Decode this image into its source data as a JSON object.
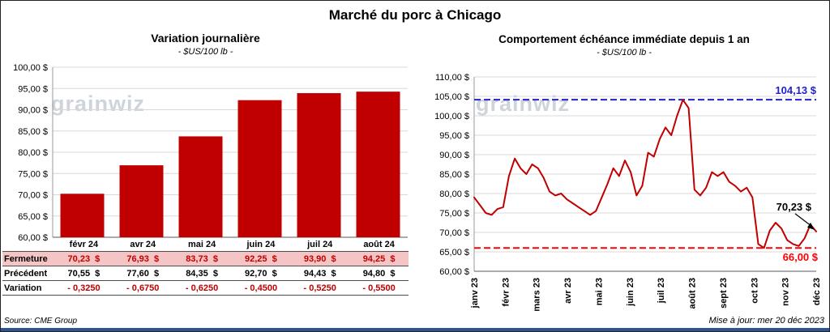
{
  "title": "Marché du porc à Chicago",
  "watermark": "grainwiz",
  "footer": {
    "source": "Source: CME Group",
    "updated": "Mise à jour: mer 20 déc 2023"
  },
  "colors": {
    "bar_red": "#C00000",
    "line_red": "#C00000",
    "reference_blue": "#2121CC",
    "reference_red": "#FF0000",
    "highlight_pink": "#F5C4C4",
    "footer_navy": "#2F5496",
    "watermark_gray": "#C3CAD2",
    "gridline_gray": "#D8D8D8"
  },
  "chart_data": [
    {
      "type": "bar",
      "title": "Variation journalière",
      "subtitle": "- $US/100 lb -",
      "categories": [
        "févr 24",
        "avr 24",
        "mai 24",
        "juin 24",
        "juil 24",
        "août 24"
      ],
      "values": [
        70.23,
        76.93,
        83.73,
        92.25,
        93.9,
        94.25
      ],
      "ylim": [
        60,
        100
      ],
      "ytick_step": 5,
      "bar_color": "#C00000",
      "grid": true,
      "table": {
        "rows": [
          {
            "label": "Fermeture",
            "style": "highlight",
            "values": [
              "70,23  $",
              "76,93  $",
              "83,73  $",
              "92,25  $",
              "93,90  $",
              "94,25  $"
            ]
          },
          {
            "label": "Précédent",
            "style": "normal",
            "values": [
              "70,55  $",
              "77,60  $",
              "84,35  $",
              "92,70  $",
              "94,43  $",
              "94,80  $"
            ]
          },
          {
            "label": "Variation",
            "style": "negative",
            "values": [
              "- 0,3250",
              "- 0,6750",
              "- 0,6250",
              "- 0,4500",
              "- 0,5250",
              "- 0,5500"
            ]
          }
        ]
      }
    },
    {
      "type": "line",
      "title": "Comportement échéance immédiate depuis 1 an",
      "subtitle": "- $US/100 lb -",
      "x_labels": [
        "janv 23",
        "févr 23",
        "mars 23",
        "avr 23",
        "mai 23",
        "juin 23",
        "juil 23",
        "août 23",
        "sept 23",
        "oct 23",
        "nov 23",
        "déc 23"
      ],
      "values": [
        79.0,
        77.0,
        75.0,
        74.5,
        76.0,
        76.5,
        84.5,
        89.0,
        86.5,
        85.0,
        87.5,
        86.5,
        84.0,
        80.5,
        79.5,
        80.0,
        78.5,
        77.5,
        76.5,
        75.5,
        74.5,
        75.5,
        79.0,
        82.5,
        86.5,
        84.5,
        88.5,
        85.5,
        79.5,
        82.0,
        90.5,
        89.5,
        94.0,
        97.0,
        95.0,
        100.0,
        104.1,
        102.0,
        81.0,
        79.5,
        81.5,
        85.5,
        84.5,
        85.5,
        83.0,
        82.0,
        80.5,
        81.5,
        79.0,
        67.0,
        66.0,
        70.5,
        72.5,
        71.0,
        68.0,
        67.0,
        66.5,
        68.5,
        72.0,
        70.23
      ],
      "ylim": [
        60,
        110
      ],
      "ytick_step": 5,
      "line_color": "#C00000",
      "grid": true,
      "legend_position": "none",
      "max_line": {
        "value": 104.13,
        "label": "104,13 $",
        "color": "#2121CC"
      },
      "min_line": {
        "value": 66.0,
        "label": "66,00 $",
        "color": "#FF0000"
      },
      "last_point": {
        "value": 70.23,
        "label": "70,23 $"
      }
    }
  ]
}
